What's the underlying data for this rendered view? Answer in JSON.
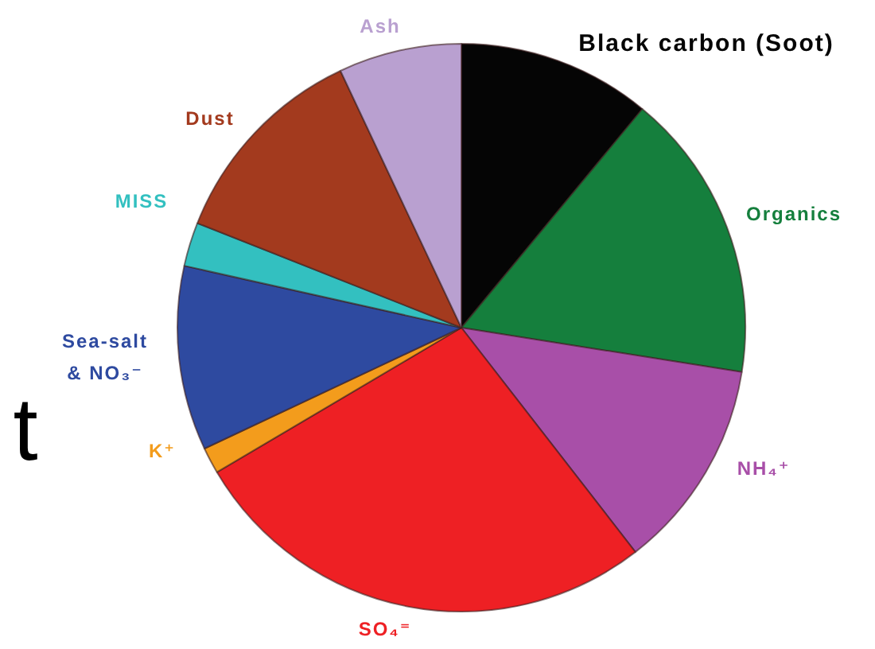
{
  "chart_data": {
    "type": "pie",
    "categories": [
      "Black carbon (Soot)",
      "Organics",
      "NH₄⁺",
      "SO₄⁼",
      "K⁺",
      "Sea-salt & NO₃⁻",
      "MISS",
      "Dust",
      "Ash"
    ],
    "values": [
      11,
      16.5,
      12,
      27,
      1.5,
      10.5,
      2.5,
      12,
      7
    ],
    "colors": [
      "#050505",
      "#157f3d",
      "#a84fa8",
      "#ee2024",
      "#f39c1c",
      "#2e4aa0",
      "#33c0c0",
      "#a33a1e",
      "#b9a0d0"
    ],
    "legend": false,
    "annotations": [
      "t"
    ]
  }
}
